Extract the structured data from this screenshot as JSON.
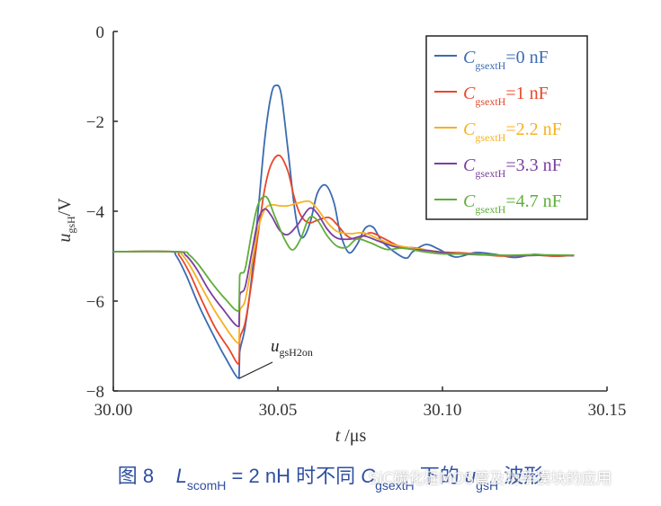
{
  "chart_data": {
    "type": "line",
    "title": "",
    "xlabel": "t /μs",
    "ylabel": "u_gsH /V",
    "xlim": [
      30.0,
      30.15
    ],
    "ylim": [
      -8,
      0
    ],
    "xticks": [
      "30.00",
      "30.05",
      "30.10",
      "30.15"
    ],
    "yticks": [
      "0",
      "−2",
      "−4",
      "−6",
      "−8"
    ],
    "grid": false,
    "legend_position": "upper right",
    "annotation": {
      "text": "u_gsH2on",
      "main": "u",
      "sub": "gsH2on",
      "x": 30.038,
      "y": -7.72
    },
    "series": [
      {
        "name": "C_gsextH=0 nF",
        "sub": "gsextH",
        "value": "=0 nF",
        "color": "#3b6bb0",
        "points": [
          [
            30.0,
            -4.9
          ],
          [
            30.017,
            -4.9
          ],
          [
            30.019,
            -4.98
          ],
          [
            30.022,
            -5.4
          ],
          [
            30.026,
            -6.1
          ],
          [
            30.03,
            -6.7
          ],
          [
            30.034,
            -7.25
          ],
          [
            30.0382,
            -7.72
          ],
          [
            30.0384,
            -7.14
          ],
          [
            30.04,
            -6.6
          ],
          [
            30.042,
            -5.5
          ],
          [
            30.044,
            -4.0
          ],
          [
            30.046,
            -2.4
          ],
          [
            30.048,
            -1.4
          ],
          [
            30.0495,
            -1.2
          ],
          [
            30.051,
            -1.4
          ],
          [
            30.053,
            -2.6
          ],
          [
            30.055,
            -3.9
          ],
          [
            30.0565,
            -4.5
          ],
          [
            30.058,
            -4.56
          ],
          [
            30.06,
            -4.2
          ],
          [
            30.062,
            -3.6
          ],
          [
            30.0645,
            -3.42
          ],
          [
            30.067,
            -3.8
          ],
          [
            30.069,
            -4.5
          ],
          [
            30.0715,
            -4.92
          ],
          [
            30.074,
            -4.75
          ],
          [
            30.0765,
            -4.38
          ],
          [
            30.079,
            -4.36
          ],
          [
            30.082,
            -4.7
          ],
          [
            30.0885,
            -5.04
          ],
          [
            30.091,
            -4.9
          ],
          [
            30.095,
            -4.74
          ],
          [
            30.099,
            -4.85
          ],
          [
            30.104,
            -5.02
          ],
          [
            30.11,
            -4.92
          ],
          [
            30.116,
            -4.96
          ],
          [
            30.122,
            -5.03
          ],
          [
            30.128,
            -4.96
          ],
          [
            30.134,
            -5.0
          ],
          [
            30.14,
            -4.98
          ]
        ]
      },
      {
        "name": "C_gsextH=1 nF",
        "sub": "gsextH",
        "value": "=1 nF",
        "color": "#e8472b",
        "points": [
          [
            30.0,
            -4.9
          ],
          [
            30.018,
            -4.9
          ],
          [
            30.02,
            -4.98
          ],
          [
            30.023,
            -5.35
          ],
          [
            30.027,
            -6.0
          ],
          [
            30.031,
            -6.6
          ],
          [
            30.035,
            -7.05
          ],
          [
            30.0382,
            -7.4
          ],
          [
            30.0384,
            -6.84
          ],
          [
            30.04,
            -6.5
          ],
          [
            30.042,
            -5.6
          ],
          [
            30.044,
            -4.5
          ],
          [
            30.046,
            -3.5
          ],
          [
            30.048,
            -2.95
          ],
          [
            30.0505,
            -2.76
          ],
          [
            30.053,
            -3.1
          ],
          [
            30.055,
            -3.7
          ],
          [
            30.057,
            -4.1
          ],
          [
            30.0595,
            -4.26
          ],
          [
            30.062,
            -4.2
          ],
          [
            30.0655,
            -4.14
          ],
          [
            30.068,
            -4.3
          ],
          [
            30.071,
            -4.55
          ],
          [
            30.074,
            -4.62
          ],
          [
            30.078,
            -4.48
          ],
          [
            30.082,
            -4.6
          ],
          [
            30.087,
            -4.78
          ],
          [
            30.092,
            -4.82
          ],
          [
            30.098,
            -4.9
          ],
          [
            30.104,
            -4.92
          ],
          [
            30.11,
            -4.95
          ],
          [
            30.118,
            -5.0
          ],
          [
            30.126,
            -4.97
          ],
          [
            30.134,
            -5.0
          ],
          [
            30.14,
            -4.98
          ]
        ]
      },
      {
        "name": "C_gsextH=2.2 nF",
        "sub": "gsextH",
        "value": "=2.2 nF",
        "color": "#f5b223",
        "points": [
          [
            30.0,
            -4.9
          ],
          [
            30.018,
            -4.9
          ],
          [
            30.021,
            -4.98
          ],
          [
            30.024,
            -5.3
          ],
          [
            30.028,
            -5.85
          ],
          [
            30.032,
            -6.35
          ],
          [
            30.0382,
            -6.94
          ],
          [
            30.0384,
            -6.24
          ],
          [
            30.04,
            -6.0
          ],
          [
            30.042,
            -5.2
          ],
          [
            30.044,
            -4.4
          ],
          [
            30.046,
            -3.96
          ],
          [
            30.048,
            -3.86
          ],
          [
            30.0505,
            -3.88
          ],
          [
            30.053,
            -3.88
          ],
          [
            30.056,
            -3.82
          ],
          [
            30.0595,
            -3.78
          ],
          [
            30.062,
            -3.95
          ],
          [
            30.065,
            -4.25
          ],
          [
            30.068,
            -4.45
          ],
          [
            30.072,
            -4.5
          ],
          [
            30.076,
            -4.48
          ],
          [
            30.08,
            -4.6
          ],
          [
            30.084,
            -4.72
          ],
          [
            30.089,
            -4.8
          ],
          [
            30.095,
            -4.86
          ],
          [
            30.102,
            -4.93
          ],
          [
            30.11,
            -4.96
          ],
          [
            30.12,
            -4.99
          ],
          [
            30.13,
            -4.98
          ],
          [
            30.14,
            -4.99
          ]
        ]
      },
      {
        "name": "C_gsextH=3.3 nF",
        "sub": "gsextH",
        "value": "=3.3 nF",
        "color": "#7b3fa0",
        "points": [
          [
            30.0,
            -4.9
          ],
          [
            30.019,
            -4.9
          ],
          [
            30.022,
            -4.98
          ],
          [
            30.025,
            -5.25
          ],
          [
            30.029,
            -5.75
          ],
          [
            30.033,
            -6.15
          ],
          [
            30.0382,
            -6.56
          ],
          [
            30.0384,
            -5.88
          ],
          [
            30.04,
            -5.7
          ],
          [
            30.042,
            -4.95
          ],
          [
            30.044,
            -4.2
          ],
          [
            30.046,
            -3.95
          ],
          [
            30.048,
            -4.1
          ],
          [
            30.0505,
            -4.42
          ],
          [
            30.053,
            -4.52
          ],
          [
            30.056,
            -4.3
          ],
          [
            30.0595,
            -3.94
          ],
          [
            30.062,
            -4.05
          ],
          [
            30.065,
            -4.4
          ],
          [
            30.068,
            -4.6
          ],
          [
            30.072,
            -4.62
          ],
          [
            30.076,
            -4.55
          ],
          [
            30.08,
            -4.65
          ],
          [
            30.085,
            -4.78
          ],
          [
            30.09,
            -4.84
          ],
          [
            30.096,
            -4.88
          ],
          [
            30.103,
            -4.94
          ],
          [
            30.112,
            -4.97
          ],
          [
            30.122,
            -4.99
          ],
          [
            30.132,
            -4.98
          ],
          [
            30.14,
            -4.99
          ]
        ]
      },
      {
        "name": "C_gsextH=4.7 nF",
        "sub": "gsextH",
        "value": "=4.7 nF",
        "color": "#5fae3a",
        "points": [
          [
            30.0,
            -4.9
          ],
          [
            30.02,
            -4.9
          ],
          [
            30.023,
            -4.97
          ],
          [
            30.026,
            -5.2
          ],
          [
            30.03,
            -5.6
          ],
          [
            30.034,
            -5.95
          ],
          [
            30.0382,
            -6.2
          ],
          [
            30.0384,
            -5.44
          ],
          [
            30.04,
            -5.3
          ],
          [
            30.042,
            -4.5
          ],
          [
            30.044,
            -3.85
          ],
          [
            30.0465,
            -3.68
          ],
          [
            30.049,
            -4.1
          ],
          [
            30.052,
            -4.62
          ],
          [
            30.0545,
            -4.86
          ],
          [
            30.057,
            -4.6
          ],
          [
            30.0595,
            -4.15
          ],
          [
            30.062,
            -4.2
          ],
          [
            30.065,
            -4.55
          ],
          [
            30.068,
            -4.78
          ],
          [
            30.071,
            -4.8
          ],
          [
            30.074,
            -4.62
          ],
          [
            30.078,
            -4.7
          ],
          [
            30.083,
            -4.85
          ],
          [
            30.088,
            -4.82
          ],
          [
            30.094,
            -4.9
          ],
          [
            30.1,
            -4.95
          ],
          [
            30.108,
            -4.95
          ],
          [
            30.118,
            -4.98
          ],
          [
            30.128,
            -4.97
          ],
          [
            30.14,
            -4.98
          ]
        ]
      }
    ]
  },
  "axes": {
    "x_label_main": "t",
    "x_label_unit": " /μs",
    "y_label_main": "u",
    "y_label_sub": "gsH",
    "y_label_unit": "/V",
    "legend_letter": "C"
  },
  "caption": {
    "prefix": "图 8",
    "L": "L",
    "L_sub": "scomH",
    "mid": "= 2 nH 时不同 ",
    "C": "C",
    "C_sub": "gsextH",
    "mid2": " 下的 ",
    "u": "u",
    "u_sub": "gsH",
    "suffix": " 波形"
  },
  "watermark": {
    "text": "SiC碳化硅MOS管及功率模块的应用"
  }
}
